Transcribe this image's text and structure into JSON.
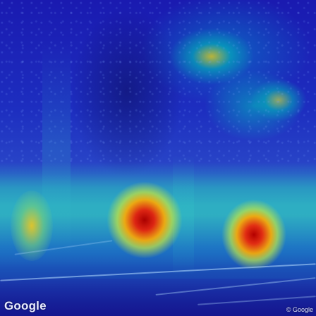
{
  "watermark": {
    "logo_text": "Google",
    "copyright_text": "© Google"
  },
  "colors": {
    "heat_high": "#c00000",
    "heat_mid": "#ffaa00",
    "heat_low": "#30c8c8",
    "background": "#1a1ab0"
  }
}
